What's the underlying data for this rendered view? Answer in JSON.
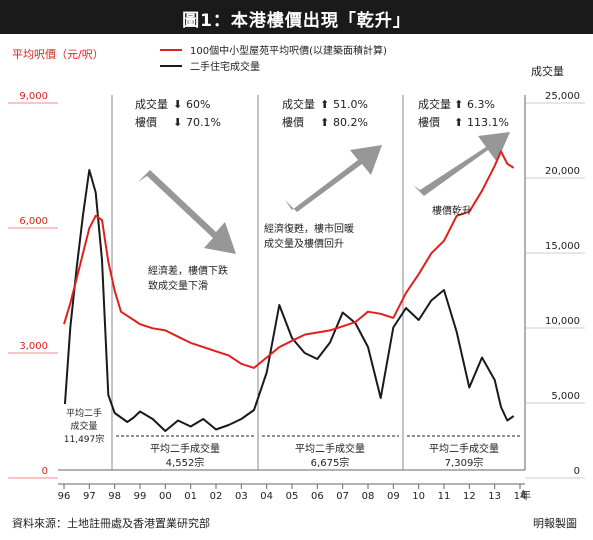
{
  "title": "圖1：本港樓價出現「乾升」",
  "source": "資料來源：土地註冊處及香港置業研究部",
  "credit": "明報製圖",
  "chart_data": {
    "type": "line",
    "ylabel_left": "平均呎價（元/呎）",
    "ylabel_right": "成交量",
    "xlabel_suffix": "年",
    "x_ticks": [
      "96",
      "97",
      "98",
      "99",
      "00",
      "01",
      "02",
      "03",
      "04",
      "05",
      "06",
      "07",
      "08",
      "09",
      "10",
      "11",
      "12",
      "13",
      "14"
    ],
    "y_left_ticks": [
      "0",
      "3,000",
      "6,000",
      "9,000"
    ],
    "y_right_ticks": [
      "0",
      "5,000",
      "10,000",
      "15,000",
      "20,000",
      "25,000"
    ],
    "y_left_range": [
      0,
      9000
    ],
    "y_right_range": [
      0,
      25000
    ],
    "legend": {
      "price": "100個中小型屋苑平均呎價(以建築面積計算)",
      "volume": "二手住宅成交量"
    },
    "colors": {
      "price": "#e0201b",
      "volume": "#1a1a1a",
      "arrow": "#8c8c8c",
      "grid": "#888888"
    },
    "x": [
      1996.0,
      1996.25,
      1996.5,
      1996.75,
      1997.0,
      1997.25,
      1997.5,
      1997.75,
      1998.0,
      1998.25,
      1998.5,
      1998.75,
      1999.0,
      1999.5,
      2000.0,
      2000.5,
      2001.0,
      2001.5,
      2002.0,
      2002.5,
      2003.0,
      2003.5,
      2004.0,
      2004.5,
      2005.0,
      2005.5,
      2006.0,
      2006.5,
      2007.0,
      2007.5,
      2008.0,
      2008.5,
      2009.0,
      2009.5,
      2010.0,
      2010.5,
      2011.0,
      2011.5,
      2012.0,
      2012.5,
      2013.0,
      2013.25,
      2013.5,
      2013.75
    ],
    "series": [
      {
        "name": "100個中小型屋苑平均呎價(以建築面積計算)",
        "axis": "left",
        "values": [
          3500,
          4000,
          4600,
          5200,
          5800,
          6100,
          6000,
          5000,
          4300,
          3800,
          3700,
          3600,
          3500,
          3400,
          3350,
          3200,
          3050,
          2950,
          2850,
          2750,
          2550,
          2450,
          2700,
          2950,
          3100,
          3250,
          3300,
          3350,
          3450,
          3550,
          3800,
          3750,
          3650,
          4250,
          4700,
          5200,
          5500,
          6100,
          6200,
          6700,
          7300,
          7650,
          7350,
          7250
        ]
      },
      {
        "name": "二手住宅成交量",
        "axis": "right",
        "values": [
          3500,
          9500,
          13500,
          17000,
          20000,
          18500,
          14000,
          5000,
          3800,
          3500,
          3200,
          3500,
          3900,
          3400,
          2600,
          3300,
          2900,
          3400,
          2700,
          3000,
          3400,
          4000,
          6500,
          11000,
          8800,
          7800,
          7400,
          8500,
          10500,
          9800,
          8200,
          4800,
          9500,
          10800,
          10000,
          11300,
          12000,
          9200,
          5500,
          7500,
          6000,
          4200,
          3300,
          3600
        ]
      }
    ],
    "annotations": {
      "period1": {
        "vol_label": "成交量",
        "vol_change": "60%",
        "price_label": "樓價",
        "price_change": "70.1%",
        "text1": "經濟差，樓價下跌",
        "text2": "致成交量下滑"
      },
      "period2": {
        "vol_label": "成交量",
        "vol_change": "51.0%",
        "price_label": "樓價",
        "price_change": "80.2%",
        "text1": "經濟復甦，樓市回暖",
        "text2": "成交量及樓價回升"
      },
      "period3": {
        "vol_label": "成交量",
        "vol_change": "6.3%",
        "price_label": "樓價",
        "price_change": "113.1%",
        "text1": "樓價乾升"
      },
      "avg0": {
        "l1": "平均二手",
        "l2": "成交量",
        "l3": "11,497宗"
      },
      "avg1": {
        "l1": "平均二手成交量",
        "l2": "4,552宗"
      },
      "avg2": {
        "l1": "平均二手成交量",
        "l2": "6,675宗"
      },
      "avg3": {
        "l1": "平均二手成交量",
        "l2": "7,309宗"
      }
    }
  }
}
